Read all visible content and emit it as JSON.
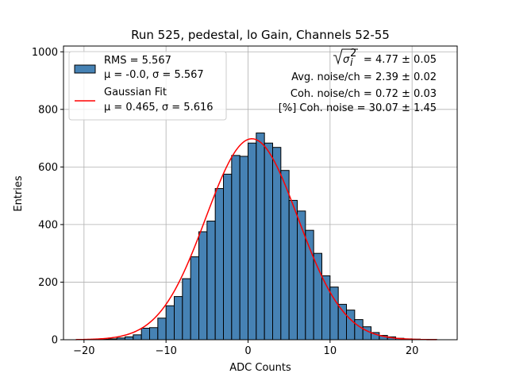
{
  "chart_data": {
    "type": "bar",
    "title": "Run 525, pedestal, lo Gain, Channels 52-55",
    "xlabel": "ADC Counts",
    "ylabel": "Entries",
    "xlim": [
      -22.5,
      25.5
    ],
    "ylim": [
      0,
      1020
    ],
    "xticks": [
      -20,
      -10,
      0,
      10,
      20
    ],
    "xtick_labels": [
      "−20",
      "−10",
      "0",
      "10",
      "20"
    ],
    "yticks": [
      0,
      200,
      400,
      600,
      800,
      1000
    ],
    "ytick_labels": [
      "0",
      "200",
      "400",
      "600",
      "800",
      "1000"
    ],
    "grid": true,
    "bar_color": "#4682b4",
    "fit_color": "#ff0000",
    "legend_position": "top-left",
    "legend": [
      {
        "line1": "RMS = 5.567",
        "line2": "μ = -0.0, σ = 5.567",
        "kind": "bar"
      },
      {
        "line1": "Gaussian Fit",
        "line2": "μ = 0.465, σ = 5.616",
        "kind": "line"
      }
    ],
    "annotations": [
      {
        "text": "√σ²ᵢ = 4.77 ± 0.05"
      },
      {
        "text": "Avg. noise/ch = 2.39 ± 0.02"
      },
      {
        "text": "Coh. noise/ch = 0.72 ± 0.03"
      },
      {
        "text": "[%] Coh. noise = 30.07 ± 1.45"
      }
    ],
    "histogram": {
      "bin_width": 1,
      "bin_left_edges": [
        -21,
        -20,
        -19,
        -18,
        -17,
        -16,
        -15,
        -14,
        -13,
        -12,
        -11,
        -10,
        -9,
        -8,
        -7,
        -6,
        -5,
        -4,
        -3,
        -2,
        -1,
        0,
        1,
        2,
        3,
        4,
        5,
        6,
        7,
        8,
        9,
        10,
        11,
        12,
        13,
        14,
        15,
        16,
        17,
        18,
        19,
        20,
        21,
        22
      ],
      "values": [
        0,
        1,
        1,
        2,
        3,
        6,
        10,
        17,
        40,
        42,
        75,
        118,
        150,
        212,
        288,
        375,
        412,
        525,
        575,
        640,
        637,
        683,
        718,
        683,
        668,
        588,
        484,
        447,
        380,
        300,
        222,
        183,
        123,
        103,
        70,
        45,
        25,
        15,
        10,
        5,
        3,
        2,
        1,
        1
      ]
    },
    "gaussian_fit": {
      "mu": 0.465,
      "sigma": 5.616,
      "amplitude": 698,
      "x_range": [
        -21,
        23
      ]
    }
  }
}
